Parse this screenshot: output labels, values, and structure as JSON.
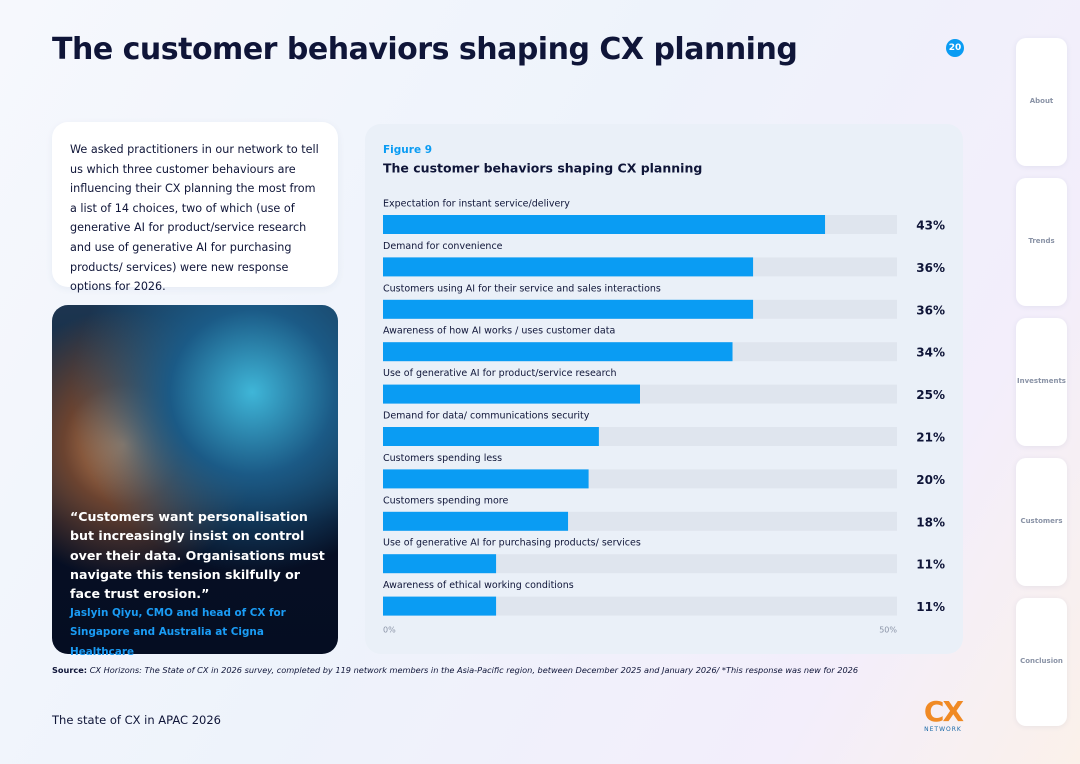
{
  "header": {
    "title": "The customer behaviors shaping CX planning",
    "page_number": "20"
  },
  "intro": "We asked practitioners in our network to tell us which three customer behaviours are influencing their CX planning the most from a list of 14 choices, two of which (use of generative AI for product/service research and use of generative AI for purchasing products/ services) were new response options for 2026.",
  "quote": {
    "text": "“Customers want personalisation but increasingly insist on control over their data. Organisations must navigate this tension skilfully or face trust erosion.”",
    "attribution": "Jaslyin Qiyu, CMO and head of CX for Singapore and Australia at Cigna Healthcare"
  },
  "chart_data": {
    "type": "hbar",
    "label": "Figure 9",
    "title": "The customer behaviors shaping CX planning",
    "categories": [
      "Expectation for instant service/delivery",
      "Demand for convenience",
      "Customers using AI for their service and sales interactions",
      "Awareness of how AI works / uses customer data",
      "Use of generative AI for product/service research",
      "Demand for data/ communications security",
      "Customers spending less",
      "Customers spending more",
      "Use of generative AI for purchasing products/ services",
      "Awareness of ethical working conditions"
    ],
    "values": [
      43,
      36,
      36,
      34,
      25,
      21,
      20,
      18,
      11,
      11
    ],
    "value_labels": [
      "43%",
      "36%",
      "36%",
      "34%",
      "25%",
      "21%",
      "20%",
      "18%",
      "11%",
      "11%"
    ],
    "color": "#0a9cf3",
    "track_color": "#dfe5ee",
    "xlim": [
      0,
      50
    ],
    "xticks": [
      {
        "value": 0,
        "label": "0%"
      },
      {
        "value": 50,
        "label": "50%"
      }
    ],
    "grid": false
  },
  "source": {
    "label": "Source:",
    "text": "CX Horizons: The State of CX in 2026 survey, completed by 119 network members in the Asia-Pacific region, between December 2025 and January 2026/ *This response was new for 2026"
  },
  "footer": "The state of CX in APAC 2026",
  "logo": {
    "mark": "CX",
    "text": "NETWORK"
  },
  "nav": [
    "About",
    "Trends",
    "Investments",
    "Customers",
    "Conclusion"
  ]
}
